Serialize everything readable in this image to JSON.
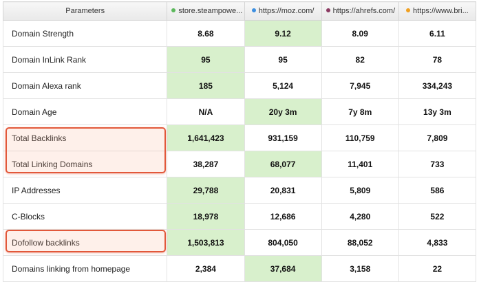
{
  "table": {
    "header": {
      "param_label": "Parameters",
      "sites": [
        {
          "label": "store.steampowe...",
          "dot_color": "#5cb85c"
        },
        {
          "label": "https://moz.com/",
          "dot_color": "#3d8fe0"
        },
        {
          "label": "https://ahrefs.com/",
          "dot_color": "#8b3a62"
        },
        {
          "label": "https://www.bri...",
          "dot_color": "#f0a020"
        }
      ]
    },
    "rows": [
      {
        "label": "Domain Strength",
        "values": [
          "8.68",
          "9.12",
          "8.09",
          "6.11"
        ],
        "best_column": 2
      },
      {
        "label": "Domain InLink Rank",
        "values": [
          "95",
          "95",
          "82",
          "78"
        ],
        "best_column": 1
      },
      {
        "label": "Domain Alexa rank",
        "values": [
          "185",
          "5,124",
          "7,945",
          "334,243"
        ],
        "best_column": 1
      },
      {
        "label": "Domain Age",
        "values": [
          "N/A",
          "20y 3m",
          "7y 8m",
          "13y 3m"
        ],
        "best_column": 2
      },
      {
        "label": "Total Backlinks",
        "values": [
          "1,641,423",
          "931,159",
          "110,759",
          "7,809"
        ],
        "best_column": 1
      },
      {
        "label": "Total Linking Domains",
        "values": [
          "38,287",
          "68,077",
          "11,401",
          "733"
        ],
        "best_column": 2
      },
      {
        "label": "IP Addresses",
        "values": [
          "29,788",
          "20,831",
          "5,809",
          "586"
        ],
        "best_column": 1
      },
      {
        "label": "C-Blocks",
        "values": [
          "18,978",
          "12,686",
          "4,280",
          "522"
        ],
        "best_column": 1
      },
      {
        "label": "Dofollow backlinks",
        "values": [
          "1,503,813",
          "804,050",
          "88,052",
          "4,833"
        ],
        "best_column": 1
      },
      {
        "label": "Domains linking from homepage",
        "values": [
          "2,384",
          "37,684",
          "3,158",
          "22"
        ],
        "best_column": 2
      }
    ]
  },
  "highlight_color": "#d8f0cc",
  "annotation_color": "#e2583a",
  "annotated_rows": [
    "Total Backlinks",
    "Total Linking Domains",
    "Dofollow backlinks"
  ]
}
